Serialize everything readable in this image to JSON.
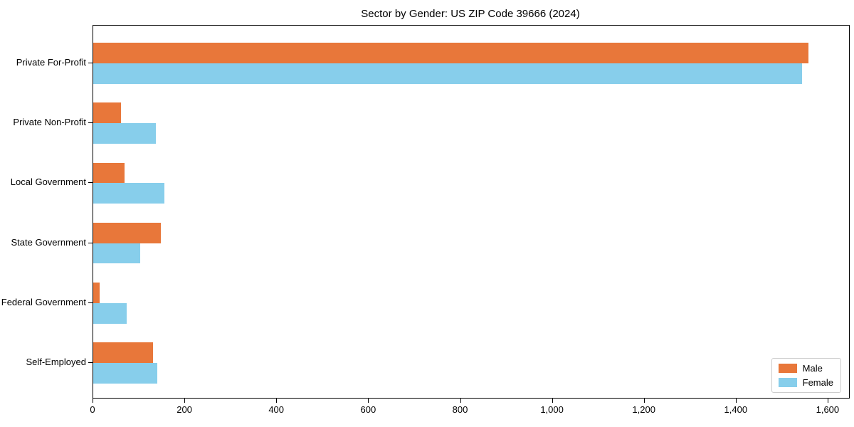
{
  "title": "Sector by Gender: US ZIP Code 39666 (2024)",
  "chart_data": {
    "type": "bar",
    "orientation": "horizontal",
    "title": "Sector by Gender: US ZIP Code 39666 (2024)",
    "xlabel": "",
    "ylabel": "",
    "categories": [
      "Private For-Profit",
      "Private Non-Profit",
      "Local Government",
      "State Government",
      "Federal Government",
      "Self-Employed"
    ],
    "series": [
      {
        "name": "Male",
        "color": "#E8773A",
        "values": [
          1556,
          60,
          68,
          147,
          14,
          130
        ]
      },
      {
        "name": "Female",
        "color": "#87CEEB",
        "values": [
          1543,
          136,
          155,
          102,
          72,
          140
        ]
      }
    ],
    "xlim": [
      0,
      1645
    ],
    "xticks": [
      0,
      200,
      400,
      600,
      800,
      1000,
      1200,
      1400,
      1600
    ],
    "xtick_labels": [
      "0",
      "200",
      "400",
      "600",
      "800",
      "1,000",
      "1,200",
      "1,400",
      "1,600"
    ],
    "grid": false,
    "legend_position": "lower right",
    "axis_color": "#000000",
    "background_color": "#ffffff"
  }
}
